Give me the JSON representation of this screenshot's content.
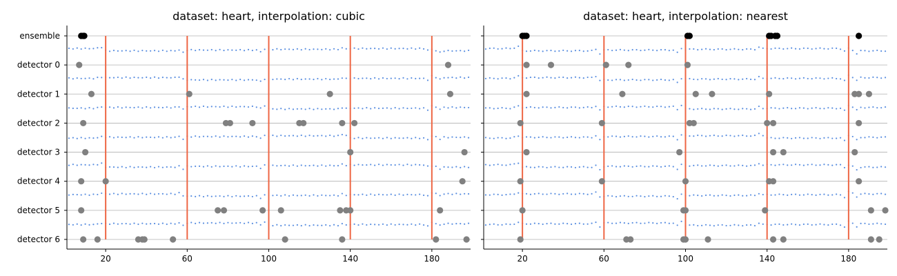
{
  "chart_data": [
    {
      "type": "scatter",
      "title": "dataset: heart, interpolation: cubic",
      "xlim": [
        1,
        199
      ],
      "xticks": [
        20,
        60,
        100,
        140,
        180
      ],
      "rows": [
        "ensemble",
        "detector 0",
        "detector 1",
        "detector 2",
        "detector 3",
        "detector 4",
        "detector 5",
        "detector 6"
      ],
      "change_points": [
        20,
        60,
        100,
        140,
        180
      ],
      "detections": {
        "ensemble": [
          8,
          9,
          9.5
        ],
        "detector 0": [
          7,
          188
        ],
        "detector 1": [
          13,
          61,
          130,
          189
        ],
        "detector 2": [
          9,
          79,
          81,
          92,
          115,
          117,
          136,
          142
        ],
        "detector 3": [
          10,
          140,
          196
        ],
        "detector 4": [
          8,
          20,
          195
        ],
        "detector 5": [
          8,
          75,
          78,
          97,
          106,
          135,
          138,
          140,
          184
        ],
        "detector 6": [
          9,
          16,
          36,
          38,
          39,
          53,
          108,
          136,
          182,
          197
        ]
      },
      "signal": {
        "freq": 2,
        "amp": 2.5
      }
    },
    {
      "type": "scatter",
      "title": "dataset: heart, interpolation: nearest",
      "xlim": [
        1,
        199
      ],
      "xticks": [
        20,
        60,
        100,
        140,
        180
      ],
      "rows": [
        "ensemble",
        "detector 0",
        "detector 1",
        "detector 2",
        "detector 3",
        "detector 4",
        "detector 5",
        "detector 6"
      ],
      "change_points": [
        20,
        60,
        100,
        140,
        180
      ],
      "detections": {
        "ensemble": [
          20,
          21,
          22,
          101,
          102,
          141,
          142,
          144,
          145,
          185
        ],
        "detector 0": [
          22,
          34,
          61,
          72,
          101
        ],
        "detector 1": [
          22,
          69,
          105,
          113,
          141,
          183,
          185,
          190
        ],
        "detector 2": [
          19,
          59,
          102,
          104,
          140,
          143,
          185
        ],
        "detector 3": [
          22,
          97,
          143,
          148,
          183
        ],
        "detector 4": [
          19,
          59,
          100,
          141,
          143,
          185
        ],
        "detector 5": [
          20,
          99,
          100,
          139,
          191,
          198
        ],
        "detector 6": [
          19,
          71,
          73,
          99,
          100,
          111,
          143,
          148,
          191,
          195
        ]
      },
      "signal": {
        "freq": 1,
        "amp": 4
      }
    }
  ]
}
